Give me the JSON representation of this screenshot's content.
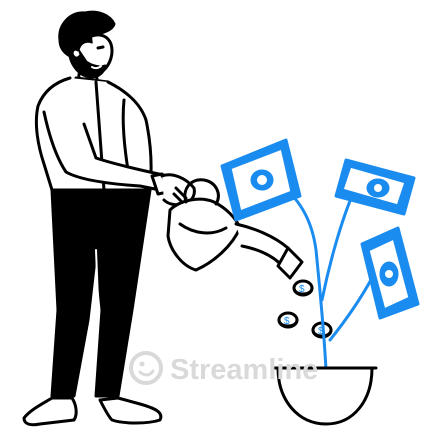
{
  "illustration": {
    "watermark": "Streamline",
    "colors": {
      "ink": "#000000",
      "accent": "#1a8cf0",
      "paper": "#ffffff",
      "watermark": "#d9d9d9"
    },
    "icons": [
      "man-figure",
      "watering-can",
      "money-plant",
      "dollar-bill",
      "coin",
      "plant-pot",
      "watermark-logo"
    ]
  }
}
